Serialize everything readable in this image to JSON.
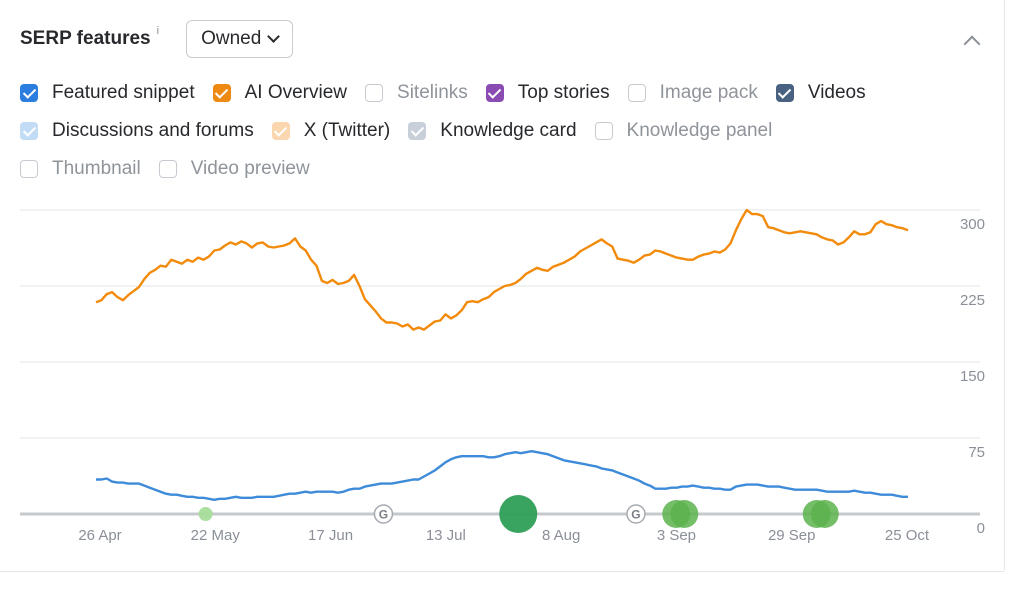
{
  "header": {
    "title": "SERP features",
    "info": "i",
    "dropdown_value": "Owned"
  },
  "filters": [
    [
      {
        "label": "Featured snippet",
        "checked": true,
        "color": "#2b7de0",
        "muted": false
      },
      {
        "label": "AI Overview",
        "checked": true,
        "color": "#ee8a12",
        "muted": false
      },
      {
        "label": "Sitelinks",
        "checked": false,
        "color": "",
        "muted": true
      },
      {
        "label": "Top stories",
        "checked": true,
        "color": "#8a4bb3",
        "muted": false
      },
      {
        "label": "Image pack",
        "checked": false,
        "color": "",
        "muted": true
      },
      {
        "label": "Videos",
        "checked": true,
        "color": "#4a6282",
        "muted": false
      }
    ],
    [
      {
        "label": "Discussions and forums",
        "checked": true,
        "color": "#c3dcf5",
        "muted": false
      },
      {
        "label": "X (Twitter)",
        "checked": true,
        "color": "#fbd7b0",
        "muted": false
      },
      {
        "label": "Knowledge card",
        "checked": true,
        "color": "#c8cfd8",
        "muted": false
      },
      {
        "label": "Knowledge panel",
        "checked": false,
        "color": "",
        "muted": true
      }
    ],
    [
      {
        "label": "Thumbnail",
        "checked": false,
        "color": "",
        "muted": true
      },
      {
        "label": "Video preview",
        "checked": false,
        "color": "",
        "muted": true
      }
    ]
  ],
  "chart_data": {
    "type": "line",
    "x_ticks": [
      "26 Apr",
      "22 May",
      "17 Jun",
      "13 Jul",
      "8 Aug",
      "3 Sep",
      "29 Sep",
      "25 Oct"
    ],
    "y_ticks": [
      0,
      75,
      150,
      225,
      300
    ],
    "ylim": [
      0,
      300
    ],
    "grid": true,
    "series": [
      {
        "color": "#f28b0c",
        "values": [
          209,
          211,
          217,
          219,
          214,
          211,
          216,
          220,
          224,
          232,
          238,
          241,
          245,
          244,
          251,
          249,
          247,
          251,
          249,
          253,
          251,
          254,
          260,
          261,
          265,
          268,
          266,
          269,
          267,
          263,
          267,
          268,
          264,
          263,
          264,
          265,
          267,
          272,
          264,
          260,
          251,
          245,
          230,
          228,
          231,
          227,
          228,
          230,
          236,
          225,
          212,
          206,
          200,
          193,
          189,
          189,
          188,
          185,
          187,
          182,
          184,
          182,
          186,
          190,
          191,
          197,
          193,
          196,
          201,
          209,
          210,
          209,
          212,
          214,
          219,
          222,
          225,
          226,
          228,
          232,
          237,
          240,
          243,
          241,
          240,
          244,
          246,
          248,
          251,
          254,
          259,
          262,
          265,
          268,
          271,
          267,
          264,
          252,
          251,
          250,
          248,
          251,
          255,
          256,
          260,
          259,
          257,
          255,
          253,
          252,
          251,
          251,
          254,
          256,
          257,
          259,
          258,
          261,
          267,
          280,
          291,
          300,
          296,
          296,
          294,
          283,
          282,
          280,
          278,
          277,
          278,
          279,
          278,
          277,
          276,
          273,
          271,
          270,
          266,
          268,
          273,
          279,
          276,
          276,
          278,
          286,
          289,
          286,
          285,
          283,
          282,
          280
        ]
      },
      {
        "color": "#3d8bd9",
        "values": [
          34,
          34,
          35,
          32,
          31,
          31,
          30,
          30,
          30,
          28,
          26,
          24,
          22,
          20,
          19,
          19,
          18,
          17,
          17,
          16,
          16,
          15,
          14,
          15,
          15,
          16,
          17,
          16,
          16,
          16,
          17,
          17,
          17,
          17,
          18,
          19,
          20,
          20,
          21,
          22,
          21,
          22,
          22,
          22,
          22,
          21,
          22,
          24,
          25,
          25,
          27,
          28,
          29,
          30,
          30,
          30,
          31,
          32,
          33,
          34,
          34,
          37,
          40,
          43,
          47,
          51,
          54,
          56,
          57,
          57,
          57,
          57,
          57,
          56,
          56,
          57,
          59,
          60,
          61,
          60,
          61,
          62,
          61,
          60,
          59,
          57,
          55,
          53,
          52,
          51,
          50,
          49,
          48,
          47,
          45,
          44,
          43,
          41,
          39,
          37,
          35,
          33,
          30,
          28,
          25,
          25,
          25,
          26,
          26,
          27,
          27,
          28,
          27,
          26,
          26,
          25,
          25,
          24,
          24,
          27,
          28,
          29,
          29,
          29,
          28,
          27,
          27,
          27,
          26,
          25,
          24,
          24,
          24,
          24,
          24,
          23,
          22,
          22,
          22,
          22,
          22,
          23,
          22,
          21,
          21,
          20,
          19,
          19,
          19,
          18,
          17,
          17
        ]
      }
    ],
    "markers": [
      {
        "x_fraction": 0.135,
        "kind": "dot",
        "size": "small",
        "color": "#a7dd9a"
      },
      {
        "x_fraction": 0.354,
        "kind": "google",
        "label": "G",
        "size": "small",
        "color": "#ffffff"
      },
      {
        "x_fraction": 0.52,
        "kind": "dot",
        "size": "large",
        "color": "#2e9e57"
      },
      {
        "x_fraction": 0.665,
        "kind": "google",
        "label": "G",
        "size": "small",
        "color": "#ffffff"
      },
      {
        "x_fraction": 0.722,
        "kind": "dot",
        "size": "medium",
        "color": "#5cb34d"
      },
      {
        "x_fraction": 0.895,
        "kind": "dot",
        "size": "medium",
        "color": "#5cb34d"
      }
    ],
    "colors": {
      "grid": "#e2e4e8",
      "axis": "#c5c8cd",
      "tick_text": "#8a8f98"
    }
  }
}
